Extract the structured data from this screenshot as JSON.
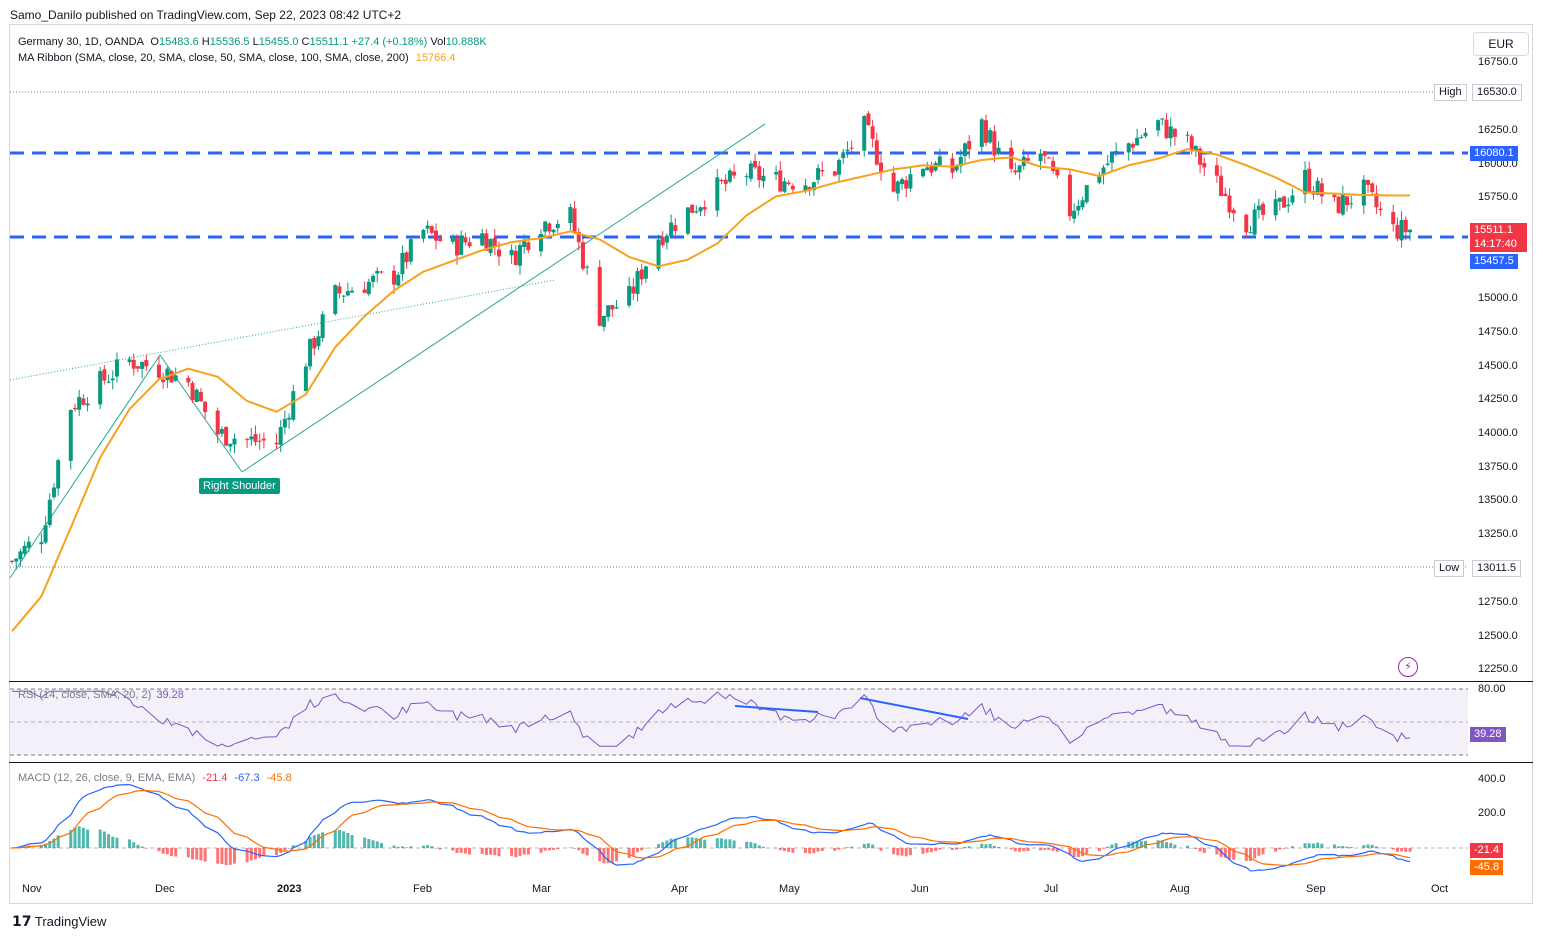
{
  "publish_line": "Samo_Danilo published on TradingView.com, Sep 22, 2023 08:42 UTC+2",
  "header": {
    "symbol": "Germany 30, 1D, OANDA",
    "o_label": "O",
    "o": "15483.6",
    "h_label": "H",
    "h": "15536.5",
    "l_label": "L",
    "l": "15455.0",
    "c_label": "C",
    "c": "15511.1",
    "change": "+27.4 (+0.18%)",
    "vol_label": "Vol",
    "vol": "10.888K",
    "ma_label": "MA Ribbon (SMA, close, 20, SMA, close, 50, SMA, close, 100, SMA, close, 200)",
    "ma_value": "15766.4"
  },
  "currency_button": "EUR",
  "price_axis": [
    "16750.0",
    "16250.0",
    "16000.0",
    "15750.0",
    "15000.0",
    "14750.0",
    "14500.0",
    "14250.0",
    "14000.0",
    "13750.0",
    "13500.0",
    "13250.0",
    "12750.0",
    "12500.0",
    "12250.0"
  ],
  "tags": {
    "high_label": "High",
    "high_value": "16530.0",
    "low_label": "Low",
    "low_value": "13011.5",
    "resistance": "16080.1",
    "last_price": "15511.1",
    "countdown": "14:17:40",
    "support": "15457.5"
  },
  "annotation": "Right Shoulder",
  "rsi": {
    "label": "RSI (14, close, SMA, 20, 2)",
    "value": "39.28",
    "axis_top": "80.00"
  },
  "macd": {
    "label": "MACD (12, 26, close, 9, EMA, EMA)",
    "hist": "-21.4",
    "macd": "-67.3",
    "signal": "-45.8",
    "axis": [
      "400.0",
      "200.0"
    ],
    "tag_hist": "-21.4",
    "tag_signal": "-45.8"
  },
  "time_axis": [
    "Nov",
    "Dec",
    "2023",
    "Feb",
    "Mar",
    "Apr",
    "May",
    "Jun",
    "Jul",
    "Aug",
    "Sep",
    "Oct"
  ],
  "footer": "TradingView",
  "colors": {
    "up": "#089981",
    "down": "#f23645",
    "ma": "#f7a21b",
    "level": "#2962ff",
    "rsi": "#7e57c2",
    "macd": "#2962ff",
    "signal": "#ff6d00"
  },
  "chart_data": {
    "type": "candlestick",
    "title": "Germany 30, 1D, OANDA",
    "ylim": [
      12150,
      16850
    ],
    "x_range": [
      "2022-10-24",
      "2023-10-06"
    ],
    "levels": [
      16530.0,
      16080.1,
      15457.5,
      13011.5
    ],
    "ma20_anchor": [
      [
        "2022-10-24",
        12530
      ],
      [
        "2022-10-31",
        12790
      ],
      [
        "2022-11-07",
        13300
      ],
      [
        "2022-11-14",
        13820
      ],
      [
        "2022-11-21",
        14180
      ],
      [
        "2022-11-28",
        14400
      ],
      [
        "2022-12-05",
        14480
      ],
      [
        "2022-12-12",
        14420
      ],
      [
        "2022-12-19",
        14240
      ],
      [
        "2022-12-26",
        14160
      ],
      [
        "2023-01-02",
        14290
      ],
      [
        "2023-01-09",
        14640
      ],
      [
        "2023-01-16",
        14870
      ],
      [
        "2023-01-23",
        15060
      ],
      [
        "2023-01-30",
        15200
      ],
      [
        "2023-02-06",
        15280
      ],
      [
        "2023-02-13",
        15360
      ],
      [
        "2023-02-20",
        15420
      ],
      [
        "2023-02-27",
        15450
      ],
      [
        "2023-03-06",
        15500
      ],
      [
        "2023-03-13",
        15440
      ],
      [
        "2023-03-20",
        15310
      ],
      [
        "2023-03-27",
        15240
      ],
      [
        "2023-04-03",
        15290
      ],
      [
        "2023-04-10",
        15410
      ],
      [
        "2023-04-17",
        15620
      ],
      [
        "2023-04-24",
        15760
      ],
      [
        "2023-05-01",
        15800
      ],
      [
        "2023-05-08",
        15860
      ],
      [
        "2023-05-15",
        15910
      ],
      [
        "2023-05-22",
        15960
      ],
      [
        "2023-05-29",
        15990
      ],
      [
        "2023-06-05",
        15980
      ],
      [
        "2023-06-12",
        16030
      ],
      [
        "2023-06-19",
        16050
      ],
      [
        "2023-06-26",
        15980
      ],
      [
        "2023-07-03",
        15960
      ],
      [
        "2023-07-10",
        15910
      ],
      [
        "2023-07-17",
        15990
      ],
      [
        "2023-07-24",
        16040
      ],
      [
        "2023-07-31",
        16110
      ],
      [
        "2023-08-07",
        16070
      ],
      [
        "2023-08-14",
        15990
      ],
      [
        "2023-08-21",
        15900
      ],
      [
        "2023-08-28",
        15790
      ],
      [
        "2023-09-04",
        15780
      ],
      [
        "2023-09-11",
        15770
      ],
      [
        "2023-09-18",
        15766
      ]
    ],
    "close_anchor": [
      [
        "2022-10-24",
        13050
      ],
      [
        "2022-10-31",
        13250
      ],
      [
        "2022-11-07",
        14200
      ],
      [
        "2022-11-14",
        14380
      ],
      [
        "2022-11-21",
        14540
      ],
      [
        "2022-11-28",
        14480
      ],
      [
        "2022-12-05",
        14380
      ],
      [
        "2022-12-12",
        14000
      ],
      [
        "2022-12-19",
        13950
      ],
      [
        "2022-12-26",
        13930
      ],
      [
        "2023-01-02",
        14550
      ],
      [
        "2023-01-09",
        15030
      ],
      [
        "2023-01-16",
        15110
      ],
      [
        "2023-01-23",
        15170
      ],
      [
        "2023-01-30",
        15500
      ],
      [
        "2023-02-06",
        15390
      ],
      [
        "2023-02-13",
        15470
      ],
      [
        "2023-02-20",
        15300
      ],
      [
        "2023-02-27",
        15560
      ],
      [
        "2023-03-06",
        15610
      ],
      [
        "2023-03-13",
        14870
      ],
      [
        "2023-03-20",
        15010
      ],
      [
        "2023-03-27",
        15460
      ],
      [
        "2023-04-03",
        15650
      ],
      [
        "2023-04-10",
        15820
      ],
      [
        "2023-04-17",
        15930
      ],
      [
        "2023-04-24",
        15880
      ],
      [
        "2023-05-01",
        15870
      ],
      [
        "2023-05-08",
        15960
      ],
      [
        "2023-05-15",
        16270
      ],
      [
        "2023-05-22",
        15800
      ],
      [
        "2023-05-29",
        16000
      ],
      [
        "2023-06-05",
        15950
      ],
      [
        "2023-06-12",
        16300
      ],
      [
        "2023-06-19",
        15900
      ],
      [
        "2023-06-26",
        16080
      ],
      [
        "2023-07-03",
        15650
      ],
      [
        "2023-07-10",
        15950
      ],
      [
        "2023-07-17",
        16150
      ],
      [
        "2023-07-24",
        16300
      ],
      [
        "2023-07-31",
        16150
      ],
      [
        "2023-08-07",
        15850
      ],
      [
        "2023-08-14",
        15570
      ],
      [
        "2023-08-21",
        15650
      ],
      [
        "2023-08-28",
        15900
      ],
      [
        "2023-09-04",
        15680
      ],
      [
        "2023-09-11",
        15800
      ],
      [
        "2023-09-18",
        15511
      ]
    ]
  }
}
